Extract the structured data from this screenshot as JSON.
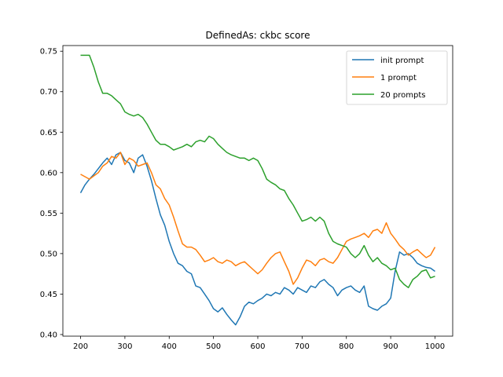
{
  "chart_data": {
    "type": "line",
    "title": "DefinedAs: ckbc score",
    "xlabel": "",
    "ylabel": "",
    "xlim": [
      160,
      1040
    ],
    "ylim": [
      0.398,
      0.757
    ],
    "xticks": [
      200,
      300,
      400,
      500,
      600,
      700,
      800,
      900,
      1000
    ],
    "xtick_labels": [
      "200",
      "300",
      "400",
      "500",
      "600",
      "700",
      "800",
      "900",
      "1000"
    ],
    "yticks": [
      0.4,
      0.45,
      0.5,
      0.55,
      0.6,
      0.65,
      0.7,
      0.75
    ],
    "ytick_labels": [
      "0.40",
      "0.45",
      "0.50",
      "0.55",
      "0.60",
      "0.65",
      "0.70",
      "0.75"
    ],
    "grid": false,
    "legend_position": "top-right",
    "series": [
      {
        "name": "init prompt",
        "color": "#1f77b4",
        "x": [
          200,
          210,
          220,
          230,
          240,
          250,
          260,
          270,
          280,
          290,
          300,
          310,
          320,
          330,
          340,
          350,
          360,
          370,
          380,
          390,
          400,
          410,
          420,
          430,
          440,
          450,
          460,
          470,
          480,
          490,
          500,
          510,
          520,
          530,
          540,
          550,
          560,
          570,
          580,
          590,
          600,
          610,
          620,
          630,
          640,
          650,
          660,
          670,
          680,
          690,
          700,
          710,
          720,
          730,
          740,
          750,
          760,
          770,
          780,
          790,
          800,
          810,
          820,
          830,
          840,
          850,
          860,
          870,
          880,
          890,
          900,
          910,
          920,
          930,
          940,
          950,
          960,
          970,
          980,
          990,
          1000
        ],
        "values": [
          0.575,
          0.585,
          0.592,
          0.598,
          0.605,
          0.612,
          0.618,
          0.61,
          0.622,
          0.625,
          0.615,
          0.612,
          0.6,
          0.618,
          0.622,
          0.608,
          0.59,
          0.568,
          0.548,
          0.535,
          0.515,
          0.5,
          0.488,
          0.485,
          0.478,
          0.475,
          0.46,
          0.458,
          0.45,
          0.442,
          0.432,
          0.428,
          0.433,
          0.425,
          0.418,
          0.412,
          0.422,
          0.435,
          0.44,
          0.438,
          0.442,
          0.445,
          0.45,
          0.448,
          0.452,
          0.45,
          0.458,
          0.455,
          0.45,
          0.458,
          0.455,
          0.452,
          0.46,
          0.458,
          0.465,
          0.468,
          0.462,
          0.458,
          0.448,
          0.455,
          0.458,
          0.46,
          0.455,
          0.452,
          0.46,
          0.435,
          0.432,
          0.43,
          0.435,
          0.438,
          0.445,
          0.478,
          0.502,
          0.498,
          0.5,
          0.495,
          0.488,
          0.485,
          0.483,
          0.482,
          0.478
        ]
      },
      {
        "name": "1 prompt",
        "color": "#ff7f0e",
        "x": [
          200,
          210,
          220,
          230,
          240,
          250,
          260,
          270,
          280,
          290,
          300,
          310,
          320,
          330,
          340,
          350,
          360,
          370,
          380,
          390,
          400,
          410,
          420,
          430,
          440,
          450,
          460,
          470,
          480,
          490,
          500,
          510,
          520,
          530,
          540,
          550,
          560,
          570,
          580,
          590,
          600,
          610,
          620,
          630,
          640,
          650,
          660,
          670,
          680,
          690,
          700,
          710,
          720,
          730,
          740,
          750,
          760,
          770,
          780,
          790,
          800,
          810,
          820,
          830,
          840,
          850,
          860,
          870,
          880,
          890,
          900,
          910,
          920,
          930,
          940,
          950,
          960,
          970,
          980,
          990,
          1000
        ],
        "values": [
          0.598,
          0.595,
          0.592,
          0.596,
          0.6,
          0.608,
          0.612,
          0.62,
          0.618,
          0.625,
          0.61,
          0.618,
          0.615,
          0.608,
          0.61,
          0.612,
          0.6,
          0.585,
          0.58,
          0.568,
          0.56,
          0.545,
          0.528,
          0.512,
          0.508,
          0.508,
          0.505,
          0.498,
          0.49,
          0.492,
          0.495,
          0.49,
          0.488,
          0.492,
          0.49,
          0.485,
          0.488,
          0.49,
          0.485,
          0.48,
          0.475,
          0.48,
          0.488,
          0.495,
          0.5,
          0.502,
          0.49,
          0.478,
          0.462,
          0.47,
          0.482,
          0.492,
          0.49,
          0.485,
          0.492,
          0.494,
          0.49,
          0.488,
          0.495,
          0.505,
          0.515,
          0.518,
          0.52,
          0.522,
          0.525,
          0.52,
          0.528,
          0.53,
          0.525,
          0.538,
          0.525,
          0.518,
          0.51,
          0.505,
          0.498,
          0.502,
          0.505,
          0.5,
          0.495,
          0.498,
          0.508
        ]
      },
      {
        "name": "20 prompts",
        "color": "#2ca02c",
        "x": [
          200,
          210,
          220,
          230,
          240,
          250,
          260,
          270,
          280,
          290,
          300,
          310,
          320,
          330,
          340,
          350,
          360,
          370,
          380,
          390,
          400,
          410,
          420,
          430,
          440,
          450,
          460,
          470,
          480,
          490,
          500,
          510,
          520,
          530,
          540,
          550,
          560,
          570,
          580,
          590,
          600,
          610,
          620,
          630,
          640,
          650,
          660,
          670,
          680,
          690,
          700,
          710,
          720,
          730,
          740,
          750,
          760,
          770,
          780,
          790,
          800,
          810,
          820,
          830,
          840,
          850,
          860,
          870,
          880,
          890,
          900,
          910,
          920,
          930,
          940,
          950,
          960,
          970,
          980,
          990,
          1000
        ],
        "values": [
          0.745,
          0.745,
          0.745,
          0.73,
          0.712,
          0.698,
          0.698,
          0.695,
          0.69,
          0.685,
          0.675,
          0.672,
          0.67,
          0.672,
          0.668,
          0.66,
          0.65,
          0.64,
          0.635,
          0.635,
          0.632,
          0.628,
          0.63,
          0.632,
          0.635,
          0.632,
          0.638,
          0.64,
          0.638,
          0.645,
          0.642,
          0.635,
          0.63,
          0.625,
          0.622,
          0.62,
          0.618,
          0.618,
          0.615,
          0.618,
          0.615,
          0.605,
          0.592,
          0.588,
          0.585,
          0.58,
          0.578,
          0.568,
          0.56,
          0.55,
          0.54,
          0.542,
          0.545,
          0.54,
          0.545,
          0.54,
          0.525,
          0.515,
          0.512,
          0.51,
          0.508,
          0.5,
          0.495,
          0.5,
          0.51,
          0.498,
          0.49,
          0.495,
          0.488,
          0.485,
          0.48,
          0.482,
          0.468,
          0.462,
          0.458,
          0.468,
          0.472,
          0.478,
          0.48,
          0.47,
          0.472
        ]
      }
    ]
  }
}
